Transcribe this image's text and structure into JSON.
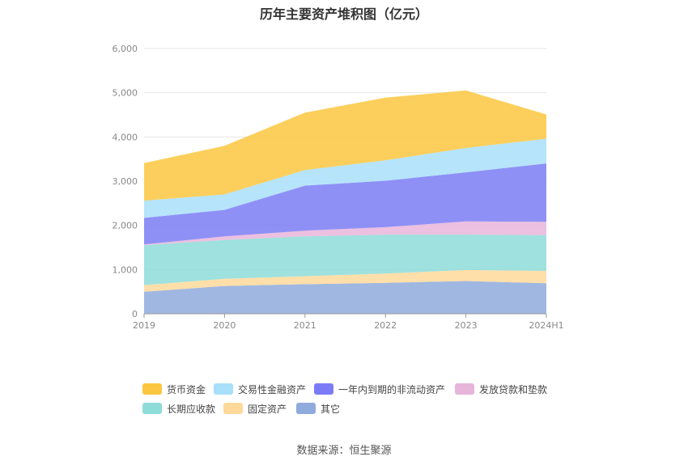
{
  "title": "历年主要资产堆积图（亿元）",
  "source": "数据来源：恒生聚源",
  "chart_data": {
    "type": "area",
    "stacked": true,
    "categories": [
      "2019",
      "2020",
      "2021",
      "2022",
      "2023",
      "2024H1"
    ],
    "ylim": [
      0,
      6000
    ],
    "yticks": [
      "0",
      "1,000",
      "2,000",
      "3,000",
      "4,000",
      "5,000",
      "6,000"
    ],
    "grid": true,
    "legend_position": "bottom",
    "series": [
      {
        "name": "其它",
        "color": "#8faadc",
        "values": [
          500,
          630,
          670,
          700,
          740,
          690
        ]
      },
      {
        "name": "固定资产",
        "color": "#ffd99a",
        "values": [
          150,
          160,
          180,
          210,
          250,
          280
        ]
      },
      {
        "name": "长期应收款",
        "color": "#8ddcd9",
        "values": [
          900,
          880,
          900,
          880,
          800,
          810
        ]
      },
      {
        "name": "发放贷款和垫款",
        "color": "#e8b5da",
        "values": [
          20,
          80,
          130,
          170,
          300,
          300
        ]
      },
      {
        "name": "一年内到期的非流动资产",
        "color": "#7b7cf5",
        "values": [
          600,
          600,
          1020,
          1050,
          1110,
          1320
        ]
      },
      {
        "name": "交易性金融资产",
        "color": "#a8dffa",
        "values": [
          390,
          350,
          350,
          460,
          550,
          560
        ]
      },
      {
        "name": "货币资金",
        "color": "#fcc740",
        "values": [
          850,
          1100,
          1300,
          1420,
          1300,
          550
        ]
      }
    ]
  }
}
